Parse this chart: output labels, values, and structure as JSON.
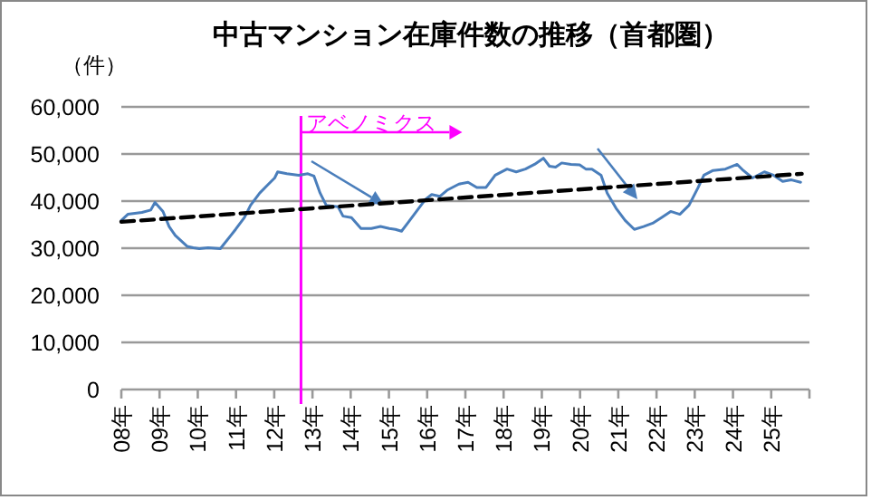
{
  "chart_data": {
    "type": "line",
    "title": "中古マンション在庫件数の推移（首都圏）",
    "ylabel": "（件）",
    "xlim": [
      8,
      26
    ],
    "xticks": [
      {
        "value": 8,
        "label": "08年"
      },
      {
        "value": 9,
        "label": "09年"
      },
      {
        "value": 10,
        "label": "10年"
      },
      {
        "value": 11,
        "label": "11年"
      },
      {
        "value": 12,
        "label": "12年"
      },
      {
        "value": 13,
        "label": "13年"
      },
      {
        "value": 14,
        "label": "14年"
      },
      {
        "value": 15,
        "label": "15年"
      },
      {
        "value": 16,
        "label": "16年"
      },
      {
        "value": 17,
        "label": "17年"
      },
      {
        "value": 18,
        "label": "18年"
      },
      {
        "value": 19,
        "label": "19年"
      },
      {
        "value": 20,
        "label": "20年"
      },
      {
        "value": 21,
        "label": "21年"
      },
      {
        "value": 22,
        "label": "22年"
      },
      {
        "value": 23,
        "label": "23年"
      },
      {
        "value": 24,
        "label": "24年"
      },
      {
        "value": 25,
        "label": "25年"
      },
      {
        "value": 26,
        "label": null
      }
    ],
    "ylim": [
      0,
      60000
    ],
    "yticks": [
      {
        "value": 0,
        "label": "0"
      },
      {
        "value": 10000,
        "label": "10,000"
      },
      {
        "value": 20000,
        "label": "20,000"
      },
      {
        "value": 30000,
        "label": "30,000"
      },
      {
        "value": 40000,
        "label": "40,000"
      },
      {
        "value": 50000,
        "label": "50,000"
      },
      {
        "value": 60000,
        "label": "60,000"
      }
    ],
    "grid": "y",
    "series": [
      {
        "color": "#4a7ebb",
        "line_style": "solid",
        "x": [
          8.0,
          8.17,
          8.54,
          8.77,
          8.88,
          9.09,
          9.25,
          9.41,
          9.72,
          9.88,
          10.04,
          10.27,
          10.59,
          10.99,
          11.22,
          11.38,
          11.62,
          11.85,
          12.01,
          12.09,
          12.33,
          12.64,
          12.88,
          13.04,
          13.2,
          13.36,
          13.67,
          13.8,
          14.02,
          14.15,
          14.27,
          14.54,
          14.78,
          15.01,
          15.17,
          15.33,
          15.49,
          15.72,
          15.96,
          16.12,
          16.33,
          16.52,
          16.83,
          17.07,
          17.3,
          17.54,
          17.78,
          18.09,
          18.33,
          18.57,
          18.81,
          19.04,
          19.2,
          19.36,
          19.52,
          19.76,
          19.99,
          20.15,
          20.31,
          20.55,
          20.71,
          20.94,
          21.18,
          21.42,
          21.66,
          21.9,
          22.13,
          22.37,
          22.61,
          22.85,
          23.09,
          23.24,
          23.48,
          23.8,
          24.11,
          24.27,
          24.51,
          24.82,
          25.06,
          25.3,
          25.53,
          25.77
        ],
        "values": [
          35900,
          37200,
          37600,
          38100,
          39700,
          37800,
          34600,
          32700,
          30400,
          30100,
          29900,
          30100,
          29900,
          34000,
          36500,
          39100,
          41700,
          43600,
          44900,
          46200,
          45800,
          45500,
          45800,
          45300,
          41700,
          39100,
          38800,
          36800,
          36500,
          35300,
          34200,
          34200,
          34600,
          34200,
          34000,
          33600,
          35300,
          37800,
          40400,
          41400,
          41000,
          42300,
          43600,
          44000,
          42900,
          42900,
          45500,
          46800,
          46200,
          46800,
          47800,
          49100,
          47400,
          47200,
          48100,
          47800,
          47700,
          46800,
          46800,
          45500,
          41700,
          38500,
          35900,
          34000,
          34600,
          35300,
          36500,
          37800,
          37200,
          39100,
          42900,
          45500,
          46500,
          46800,
          47800,
          46500,
          44900,
          46200,
          45500,
          44200,
          44500,
          44000
        ]
      },
      {
        "color": "#000000",
        "line_style": "dashed",
        "x": [
          8,
          25.8
        ],
        "values": [
          35600,
          45800
        ]
      }
    ],
    "ref_lines": [
      {
        "axis": "x",
        "value": 12.7,
        "label": "アベノミクス",
        "color": "#ff00ff"
      }
    ]
  }
}
